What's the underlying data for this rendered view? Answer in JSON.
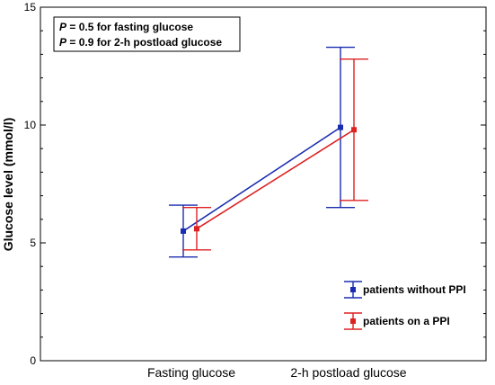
{
  "chart_data": {
    "type": "line",
    "categories": [
      "Fasting glucose",
      "2-h postload glucose"
    ],
    "ylabel": "Glucose level (mmol/l)",
    "xlabel": "",
    "ylim": [
      0,
      15
    ],
    "yticks": [
      0,
      5,
      10,
      15
    ],
    "grid": false,
    "legend_position": "bottom-right",
    "annotation": {
      "lines": [
        {
          "p": "P",
          "rest": " = 0.5 for fasting glucose"
        },
        {
          "p": "P",
          "rest": " = 0.9 for 2-h postload glucose"
        }
      ]
    },
    "series": [
      {
        "name": "patients without PPI",
        "color": "#1a2db0",
        "values": [
          5.5,
          9.9
        ],
        "error_low": [
          4.4,
          6.5
        ],
        "error_high": [
          6.6,
          13.3
        ]
      },
      {
        "name": "patients on a PPI",
        "color": "#dd2222",
        "values": [
          5.6,
          9.8
        ],
        "error_low": [
          4.7,
          6.8
        ],
        "error_high": [
          6.5,
          12.8
        ]
      }
    ]
  }
}
